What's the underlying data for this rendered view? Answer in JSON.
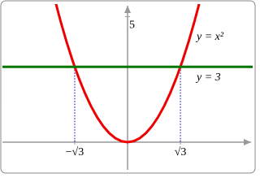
{
  "chart_data": {
    "type": "line",
    "series": [
      {
        "name": "y = x²",
        "color": "#ee0000",
        "x": [
          -2.4,
          -2.2,
          -2,
          -1.8,
          -1.6,
          -1.4,
          -1.2,
          -1,
          -0.8,
          -0.6,
          -0.4,
          -0.2,
          0,
          0.2,
          0.4,
          0.6,
          0.8,
          1,
          1.2,
          1.4,
          1.6,
          1.8,
          2,
          2.2,
          2.4
        ],
        "values": [
          5.76,
          4.84,
          4,
          3.24,
          2.56,
          1.96,
          1.44,
          1,
          0.64,
          0.36,
          0.16,
          0.04,
          0,
          0.04,
          0.16,
          0.36,
          0.64,
          1,
          1.44,
          1.96,
          2.56,
          3.24,
          4,
          4.84,
          5.76
        ]
      },
      {
        "name": "y = 3",
        "color": "#007700",
        "x": [
          -4.1,
          4.1
        ],
        "values": [
          3,
          3
        ]
      }
    ],
    "xlim": [
      -4.1,
      4.1
    ],
    "ylim": [
      -1.1,
      5.5
    ],
    "xticks": [
      {
        "value": -1.732,
        "label": "−√3"
      },
      {
        "value": 1.732,
        "label": "√3"
      }
    ],
    "yticks": [
      5
    ],
    "guide_color": "#3333cc"
  }
}
